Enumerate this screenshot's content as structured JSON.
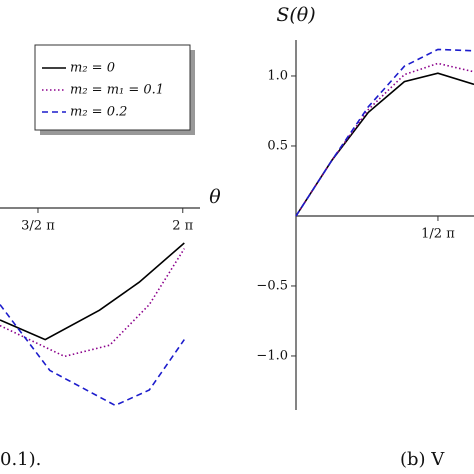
{
  "chart_data": [
    {
      "type": "line",
      "x_label": "θ",
      "caption": "0.1).",
      "xlim": [
        4.3,
        6.47
      ],
      "ylim": [
        -1.9,
        1.486
      ],
      "xticks": [
        {
          "value": 4.712,
          "label": "3/2 π"
        },
        {
          "value": 6.283,
          "label": "2 π"
        }
      ],
      "legend": "upper left",
      "series": [
        {
          "name": "m₂ = 0",
          "color": "#000000",
          "dash": "solid",
          "x": [
            4.3,
            4.79,
            5.38,
            5.81,
            6.3
          ],
          "values": [
            -0.8,
            -0.94,
            -0.73,
            -0.53,
            -0.25
          ]
        },
        {
          "name": "m₂ = m₁ = 0.1",
          "color": "#8b008b",
          "dash": "dotted",
          "x": [
            4.3,
            5.0,
            5.49,
            5.92,
            6.3
          ],
          "values": [
            -0.84,
            -1.06,
            -0.98,
            -0.69,
            -0.29
          ]
        },
        {
          "name": "m₂ = 0.2",
          "color": "#1c1ccc",
          "dash": "dashed",
          "x": [
            4.3,
            4.84,
            5.55,
            5.92,
            6.3
          ],
          "values": [
            -0.69,
            -1.16,
            -1.41,
            -1.3,
            -0.94
          ]
        }
      ]
    },
    {
      "type": "line",
      "y_label": "S(θ)",
      "caption": "(b) V",
      "xlim": [
        0,
        1.97
      ],
      "ylim": [
        -1.386,
        1.257
      ],
      "xticks": [
        {
          "value": 1.571,
          "label": "1/2 π"
        }
      ],
      "yticks": [
        {
          "value": -1,
          "label": "−1.0"
        },
        {
          "value": -0.5,
          "label": "−0.5"
        },
        0.5,
        {
          "value": 1,
          "label": "1.0"
        }
      ],
      "series": [
        {
          "color": "#000000",
          "dash": "solid",
          "x": [
            0,
            0.4,
            0.8,
            1.2,
            1.57,
            1.97
          ],
          "values": [
            0,
            0.4,
            0.74,
            0.96,
            1.02,
            0.94
          ]
        },
        {
          "color": "#8b008b",
          "dash": "dotted",
          "x": [
            0,
            0.4,
            0.8,
            1.2,
            1.57,
            1.97
          ],
          "values": [
            0,
            0.4,
            0.76,
            1.01,
            1.09,
            1.03
          ]
        },
        {
          "color": "#1c1ccc",
          "dash": "dashed",
          "x": [
            0,
            0.4,
            0.8,
            1.2,
            1.57,
            1.97
          ],
          "values": [
            0,
            0.4,
            0.78,
            1.07,
            1.19,
            1.18
          ]
        }
      ]
    }
  ]
}
